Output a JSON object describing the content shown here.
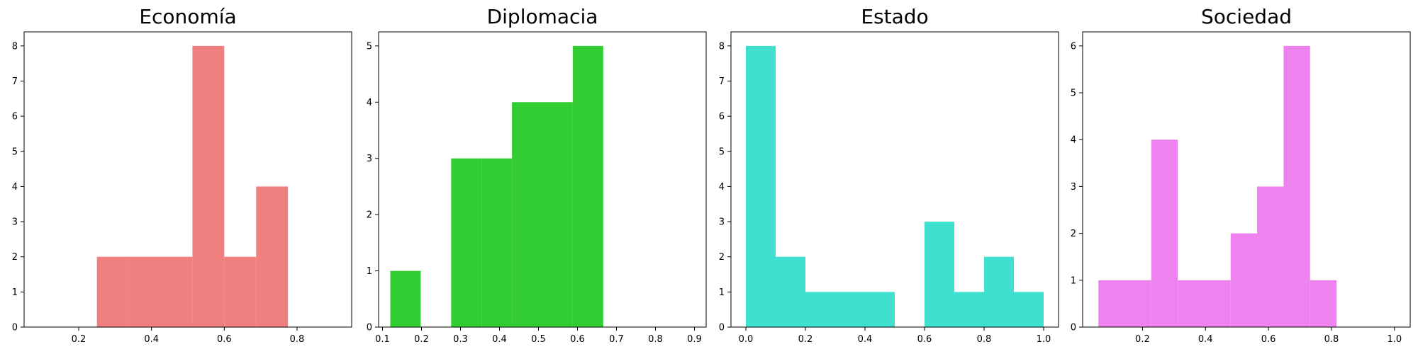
{
  "chart_data": [
    {
      "type": "bar",
      "title": "Economía",
      "color": "#f08080",
      "xlim": [
        0.05,
        0.95
      ],
      "ylim": [
        0,
        8.4
      ],
      "xticks": [
        "0.2",
        "0.4",
        "0.6",
        "0.8"
      ],
      "yticks": [
        "0",
        "1",
        "2",
        "3",
        "4",
        "5",
        "6",
        "7",
        "8"
      ],
      "bins": [
        {
          "x0": 0.25,
          "x1": 0.3375,
          "count": 2
        },
        {
          "x0": 0.3375,
          "x1": 0.425,
          "count": 2
        },
        {
          "x0": 0.425,
          "x1": 0.5125,
          "count": 2
        },
        {
          "x0": 0.5125,
          "x1": 0.6,
          "count": 8
        },
        {
          "x0": 0.6,
          "x1": 0.6875,
          "count": 2
        },
        {
          "x0": 0.6875,
          "x1": 0.775,
          "count": 4
        }
      ]
    },
    {
      "type": "bar",
      "title": "Diplomacia",
      "color": "#32cd32",
      "xlim": [
        0.09,
        0.93
      ],
      "ylim": [
        0,
        5.25
      ],
      "xticks": [
        "0.1",
        "0.2",
        "0.3",
        "0.4",
        "0.5",
        "0.6",
        "0.7",
        "0.8",
        "0.9"
      ],
      "yticks": [
        "0",
        "1",
        "2",
        "3",
        "4",
        "5"
      ],
      "bins": [
        {
          "x0": 0.12,
          "x1": 0.198,
          "count": 1
        },
        {
          "x0": 0.276,
          "x1": 0.354,
          "count": 3
        },
        {
          "x0": 0.354,
          "x1": 0.432,
          "count": 3
        },
        {
          "x0": 0.432,
          "x1": 0.51,
          "count": 4
        },
        {
          "x0": 0.51,
          "x1": 0.588,
          "count": 4
        },
        {
          "x0": 0.588,
          "x1": 0.666,
          "count": 5
        }
      ]
    },
    {
      "type": "bar",
      "title": "Estado",
      "color": "#40e0d0",
      "xlim": [
        -0.05,
        1.05
      ],
      "ylim": [
        0,
        8.4
      ],
      "xticks": [
        "0.0",
        "0.2",
        "0.4",
        "0.6",
        "0.8",
        "1.0"
      ],
      "yticks": [
        "0",
        "1",
        "2",
        "3",
        "4",
        "5",
        "6",
        "7",
        "8"
      ],
      "bins": [
        {
          "x0": 0.0,
          "x1": 0.1,
          "count": 8
        },
        {
          "x0": 0.1,
          "x1": 0.2,
          "count": 2
        },
        {
          "x0": 0.2,
          "x1": 0.3,
          "count": 1
        },
        {
          "x0": 0.3,
          "x1": 0.4,
          "count": 1
        },
        {
          "x0": 0.4,
          "x1": 0.5,
          "count": 1
        },
        {
          "x0": 0.6,
          "x1": 0.7,
          "count": 3
        },
        {
          "x0": 0.7,
          "x1": 0.8,
          "count": 1
        },
        {
          "x0": 0.8,
          "x1": 0.9,
          "count": 2
        },
        {
          "x0": 0.9,
          "x1": 1.0,
          "count": 1
        }
      ]
    },
    {
      "type": "bar",
      "title": "Sociedad",
      "color": "#ee82ee",
      "xlim": [
        0.01,
        1.05
      ],
      "ylim": [
        0,
        6.3
      ],
      "xticks": [
        "0.2",
        "0.4",
        "0.6",
        "0.8",
        "1.0"
      ],
      "yticks": [
        "0",
        "1",
        "2",
        "3",
        "4",
        "5",
        "6"
      ],
      "bins": [
        {
          "x0": 0.06,
          "x1": 0.144,
          "count": 1
        },
        {
          "x0": 0.144,
          "x1": 0.228,
          "count": 1
        },
        {
          "x0": 0.228,
          "x1": 0.312,
          "count": 4
        },
        {
          "x0": 0.312,
          "x1": 0.396,
          "count": 1
        },
        {
          "x0": 0.396,
          "x1": 0.48,
          "count": 1
        },
        {
          "x0": 0.48,
          "x1": 0.564,
          "count": 2
        },
        {
          "x0": 0.564,
          "x1": 0.648,
          "count": 3
        },
        {
          "x0": 0.648,
          "x1": 0.732,
          "count": 6
        },
        {
          "x0": 0.732,
          "x1": 0.816,
          "count": 1
        }
      ]
    }
  ]
}
